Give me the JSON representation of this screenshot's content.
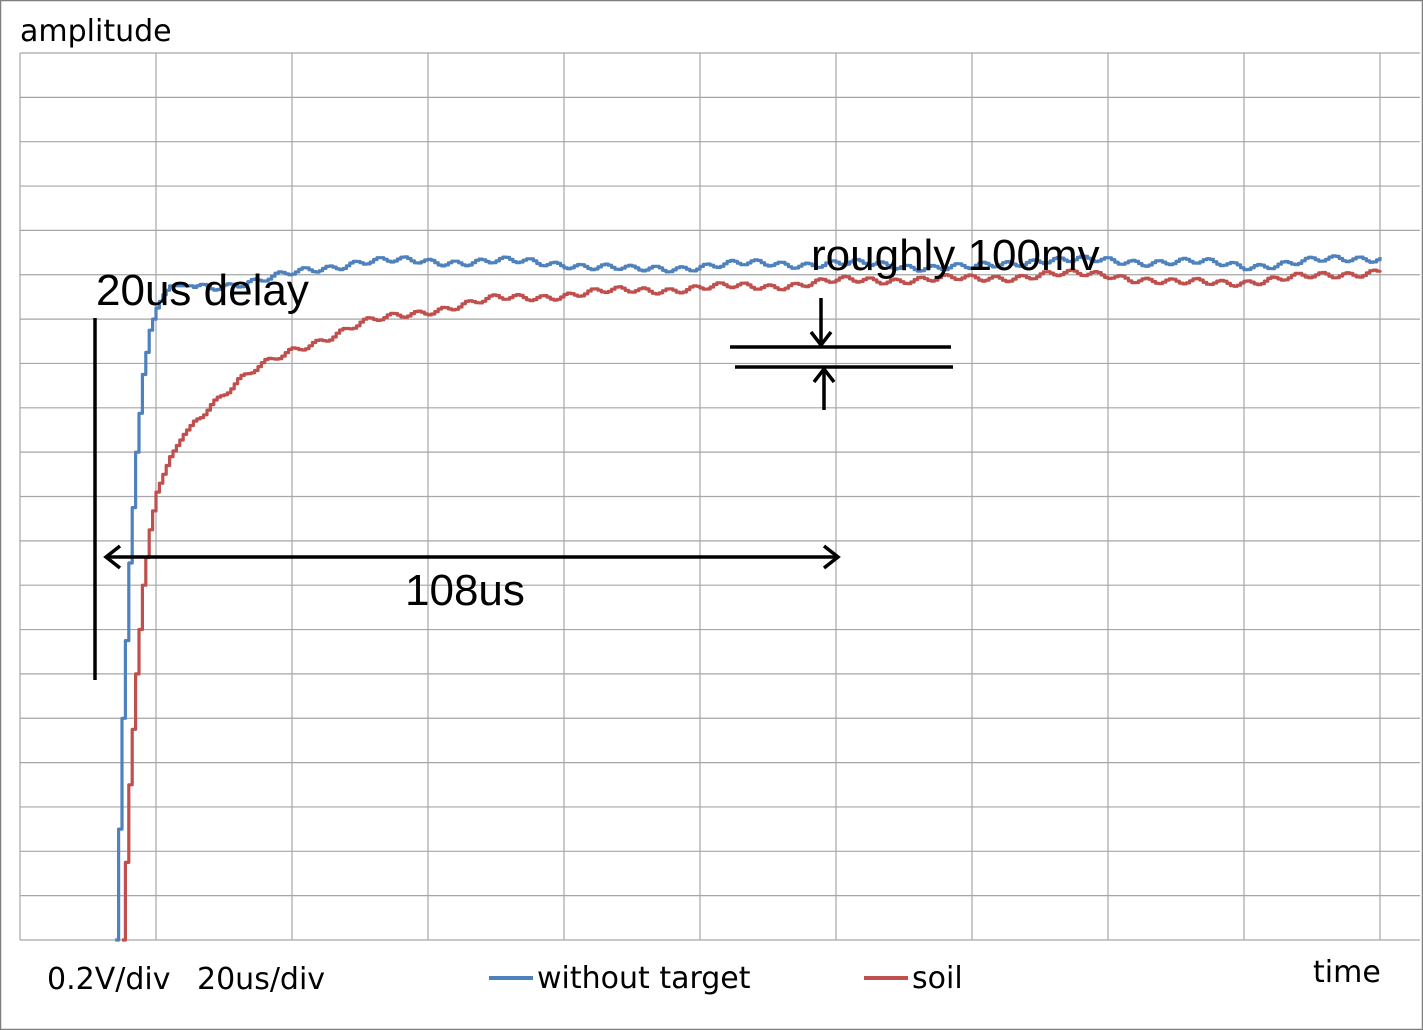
{
  "chart_data": {
    "type": "line",
    "xlabel": "time",
    "ylabel": "amplitude",
    "scale": {
      "volts_per_div": "0.2V/div",
      "time_per_div": "20us/div"
    },
    "grid": true,
    "divisions": {
      "x": 10,
      "y": 20
    },
    "xlim": [
      0,
      200
    ],
    "ylim": [
      -2.8,
      1.2
    ],
    "x_units": "us",
    "y_units": "V",
    "legend_position": "bottom",
    "series": [
      {
        "name": "without target",
        "color": "#4f81bd",
        "x": [
          14,
          15,
          16,
          17,
          18,
          19,
          20,
          21,
          22,
          24,
          28,
          35,
          42,
          50,
          60,
          70,
          80,
          90,
          100,
          110,
          120,
          130,
          140,
          150,
          160,
          170,
          180,
          190,
          200
        ],
        "y": [
          -2.8,
          -1.8,
          -1.1,
          -0.6,
          -0.25,
          -0.05,
          0.05,
          0.11,
          0.15,
          0.15,
          0.15,
          0.17,
          0.22,
          0.26,
          0.26,
          0.26,
          0.25,
          0.22,
          0.24,
          0.25,
          0.25,
          0.24,
          0.23,
          0.27,
          0.26,
          0.26,
          0.24,
          0.26,
          0.28
        ]
      },
      {
        "name": "soil",
        "color": "#c0504d",
        "x": [
          15,
          16,
          17,
          18,
          19,
          20,
          21,
          22,
          24,
          26,
          28,
          30,
          32,
          35,
          40,
          45,
          50,
          60,
          70,
          80,
          90,
          100,
          110,
          120,
          130,
          140,
          150,
          160,
          170,
          180,
          190,
          200
        ],
        "y": [
          -2.8,
          -2.1,
          -1.6,
          -1.2,
          -0.95,
          -0.78,
          -0.7,
          -0.62,
          -0.52,
          -0.44,
          -0.38,
          -0.33,
          -0.28,
          -0.22,
          -0.14,
          -0.08,
          -0.02,
          0.04,
          0.09,
          0.11,
          0.13,
          0.14,
          0.15,
          0.17,
          0.18,
          0.18,
          0.2,
          0.2,
          0.16,
          0.17,
          0.19,
          0.22
        ]
      }
    ],
    "annotations": {
      "delay": "20us delay",
      "period": "108us",
      "offset": "roughly 100mv"
    }
  }
}
